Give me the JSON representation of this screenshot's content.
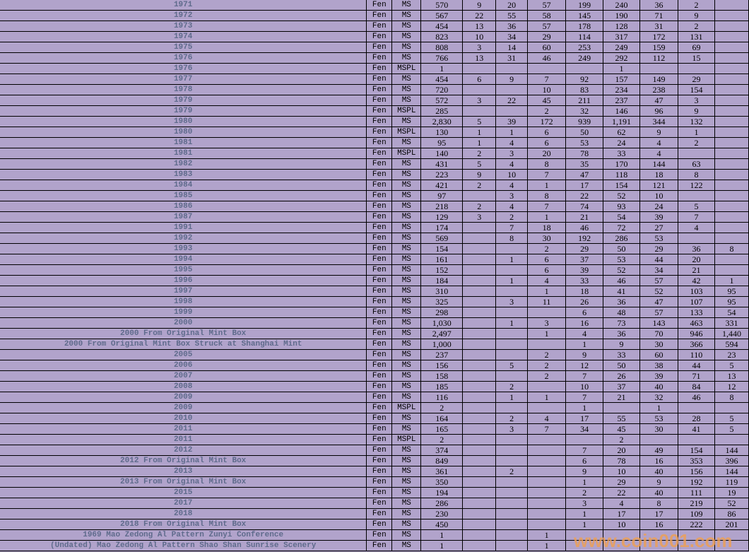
{
  "watermark": "www.coin001.com",
  "rows": [
    {
      "label": "1971",
      "denom": "Fen",
      "grade": "MS",
      "total": "570",
      "counts": [
        "9",
        "20",
        "57",
        "199",
        "240",
        "36",
        "2",
        ""
      ]
    },
    {
      "label": "1972",
      "denom": "Fen",
      "grade": "MS",
      "total": "567",
      "counts": [
        "22",
        "55",
        "58",
        "145",
        "190",
        "71",
        "9",
        ""
      ]
    },
    {
      "label": "1973",
      "denom": "Fen",
      "grade": "MS",
      "total": "454",
      "counts": [
        "13",
        "36",
        "57",
        "178",
        "128",
        "31",
        "2",
        ""
      ]
    },
    {
      "label": "1974",
      "denom": "Fen",
      "grade": "MS",
      "total": "823",
      "counts": [
        "10",
        "34",
        "29",
        "114",
        "317",
        "172",
        "131",
        ""
      ]
    },
    {
      "label": "1975",
      "denom": "Fen",
      "grade": "MS",
      "total": "808",
      "counts": [
        "3",
        "14",
        "60",
        "253",
        "249",
        "159",
        "69",
        ""
      ]
    },
    {
      "label": "1976",
      "denom": "Fen",
      "grade": "MS",
      "total": "766",
      "counts": [
        "13",
        "31",
        "46",
        "249",
        "292",
        "112",
        "15",
        ""
      ]
    },
    {
      "label": "1976",
      "denom": "Fen",
      "grade": "MSPL",
      "total": "1",
      "counts": [
        "",
        "",
        "",
        "",
        "1",
        "",
        "",
        ""
      ]
    },
    {
      "label": "1977",
      "denom": "Fen",
      "grade": "MS",
      "total": "454",
      "counts": [
        "6",
        "9",
        "7",
        "92",
        "157",
        "149",
        "29",
        ""
      ]
    },
    {
      "label": "1978",
      "denom": "Fen",
      "grade": "MS",
      "total": "720",
      "counts": [
        "",
        "",
        "10",
        "83",
        "234",
        "238",
        "154",
        ""
      ]
    },
    {
      "label": "1979",
      "denom": "Fen",
      "grade": "MS",
      "total": "572",
      "counts": [
        "3",
        "22",
        "45",
        "211",
        "237",
        "47",
        "3",
        ""
      ]
    },
    {
      "label": "1979",
      "denom": "Fen",
      "grade": "MSPL",
      "total": "285",
      "counts": [
        "",
        "",
        "2",
        "32",
        "146",
        "96",
        "9",
        ""
      ]
    },
    {
      "label": "1980",
      "denom": "Fen",
      "grade": "MS",
      "total": "2,830",
      "counts": [
        "5",
        "39",
        "172",
        "939",
        "1,191",
        "344",
        "132",
        ""
      ]
    },
    {
      "label": "1980",
      "denom": "Fen",
      "grade": "MSPL",
      "total": "130",
      "counts": [
        "1",
        "1",
        "6",
        "50",
        "62",
        "9",
        "1",
        ""
      ]
    },
    {
      "label": "1981",
      "denom": "Fen",
      "grade": "MS",
      "total": "95",
      "counts": [
        "1",
        "4",
        "6",
        "53",
        "24",
        "4",
        "2",
        ""
      ]
    },
    {
      "label": "1981",
      "denom": "Fen",
      "grade": "MSPL",
      "total": "140",
      "counts": [
        "2",
        "3",
        "20",
        "78",
        "33",
        "4",
        "",
        ""
      ]
    },
    {
      "label": "1982",
      "denom": "Fen",
      "grade": "MS",
      "total": "431",
      "counts": [
        "5",
        "4",
        "8",
        "35",
        "170",
        "144",
        "63",
        ""
      ]
    },
    {
      "label": "1983",
      "denom": "Fen",
      "grade": "MS",
      "total": "223",
      "counts": [
        "9",
        "10",
        "7",
        "47",
        "118",
        "18",
        "8",
        ""
      ]
    },
    {
      "label": "1984",
      "denom": "Fen",
      "grade": "MS",
      "total": "421",
      "counts": [
        "2",
        "4",
        "1",
        "17",
        "154",
        "121",
        "122",
        ""
      ]
    },
    {
      "label": "1985",
      "denom": "Fen",
      "grade": "MS",
      "total": "97",
      "counts": [
        "",
        "3",
        "8",
        "22",
        "52",
        "10",
        "",
        ""
      ]
    },
    {
      "label": "1986",
      "denom": "Fen",
      "grade": "MS",
      "total": "218",
      "counts": [
        "2",
        "4",
        "7",
        "74",
        "93",
        "24",
        "5",
        ""
      ]
    },
    {
      "label": "1987",
      "denom": "Fen",
      "grade": "MS",
      "total": "129",
      "counts": [
        "3",
        "2",
        "1",
        "21",
        "54",
        "39",
        "7",
        ""
      ]
    },
    {
      "label": "1991",
      "denom": "Fen",
      "grade": "MS",
      "total": "174",
      "counts": [
        "",
        "7",
        "18",
        "46",
        "72",
        "27",
        "4",
        ""
      ]
    },
    {
      "label": "1992",
      "denom": "Fen",
      "grade": "MS",
      "total": "569",
      "counts": [
        "",
        "8",
        "30",
        "192",
        "286",
        "53",
        "",
        ""
      ]
    },
    {
      "label": "1993",
      "denom": "Fen",
      "grade": "MS",
      "total": "154",
      "counts": [
        "",
        "",
        "2",
        "29",
        "50",
        "29",
        "36",
        "8"
      ]
    },
    {
      "label": "1994",
      "denom": "Fen",
      "grade": "MS",
      "total": "161",
      "counts": [
        "",
        "1",
        "6",
        "37",
        "53",
        "44",
        "20",
        ""
      ]
    },
    {
      "label": "1995",
      "denom": "Fen",
      "grade": "MS",
      "total": "152",
      "counts": [
        "",
        "",
        "6",
        "39",
        "52",
        "34",
        "21",
        ""
      ]
    },
    {
      "label": "1996",
      "denom": "Fen",
      "grade": "MS",
      "total": "184",
      "counts": [
        "",
        "1",
        "4",
        "33",
        "46",
        "57",
        "42",
        "1"
      ]
    },
    {
      "label": "1997",
      "denom": "Fen",
      "grade": "MS",
      "total": "310",
      "counts": [
        "",
        "",
        "1",
        "18",
        "41",
        "52",
        "103",
        "95"
      ]
    },
    {
      "label": "1998",
      "denom": "Fen",
      "grade": "MS",
      "total": "325",
      "counts": [
        "",
        "3",
        "11",
        "26",
        "36",
        "47",
        "107",
        "95"
      ]
    },
    {
      "label": "1999",
      "denom": "Fen",
      "grade": "MS",
      "total": "298",
      "counts": [
        "",
        "",
        "",
        "6",
        "48",
        "57",
        "133",
        "54"
      ]
    },
    {
      "label": "2000",
      "denom": "Fen",
      "grade": "MS",
      "total": "1,030",
      "counts": [
        "",
        "1",
        "3",
        "16",
        "73",
        "143",
        "463",
        "331"
      ]
    },
    {
      "label": "2000 From Original Mint Box",
      "denom": "Fen",
      "grade": "MS",
      "total": "2,497",
      "counts": [
        "",
        "",
        "1",
        "4",
        "36",
        "70",
        "946",
        "1,440"
      ]
    },
    {
      "label": "2000 From Original Mint Box Struck at Shanghai Mint",
      "denom": "Fen",
      "grade": "MS",
      "total": "1,000",
      "counts": [
        "",
        "",
        "",
        "1",
        "9",
        "30",
        "366",
        "594"
      ]
    },
    {
      "label": "2005",
      "denom": "Fen",
      "grade": "MS",
      "total": "237",
      "counts": [
        "",
        "",
        "2",
        "9",
        "33",
        "60",
        "110",
        "23"
      ]
    },
    {
      "label": "2006",
      "denom": "Fen",
      "grade": "MS",
      "total": "156",
      "counts": [
        "",
        "5",
        "2",
        "12",
        "50",
        "38",
        "44",
        "5"
      ]
    },
    {
      "label": "2007",
      "denom": "Fen",
      "grade": "MS",
      "total": "158",
      "counts": [
        "",
        "",
        "2",
        "7",
        "26",
        "39",
        "71",
        "13"
      ]
    },
    {
      "label": "2008",
      "denom": "Fen",
      "grade": "MS",
      "total": "185",
      "counts": [
        "",
        "2",
        "",
        "10",
        "37",
        "40",
        "84",
        "12"
      ]
    },
    {
      "label": "2009",
      "denom": "Fen",
      "grade": "MS",
      "total": "116",
      "counts": [
        "",
        "1",
        "1",
        "7",
        "21",
        "32",
        "46",
        "8"
      ]
    },
    {
      "label": "2009",
      "denom": "Fen",
      "grade": "MSPL",
      "total": "2",
      "counts": [
        "",
        "",
        "",
        "1",
        "",
        "1",
        "",
        ""
      ]
    },
    {
      "label": "2010",
      "denom": "Fen",
      "grade": "MS",
      "total": "164",
      "counts": [
        "",
        "2",
        "4",
        "17",
        "55",
        "53",
        "28",
        "5"
      ]
    },
    {
      "label": "2011",
      "denom": "Fen",
      "grade": "MS",
      "total": "165",
      "counts": [
        "",
        "3",
        "7",
        "34",
        "45",
        "30",
        "41",
        "5"
      ]
    },
    {
      "label": "2011",
      "denom": "Fen",
      "grade": "MSPL",
      "total": "2",
      "counts": [
        "",
        "",
        "",
        "",
        "2",
        "",
        "",
        ""
      ]
    },
    {
      "label": "2012",
      "denom": "Fen",
      "grade": "MS",
      "total": "374",
      "counts": [
        "",
        "",
        "",
        "7",
        "20",
        "49",
        "154",
        "144"
      ]
    },
    {
      "label": "2012 From Original Mint Box",
      "denom": "Fen",
      "grade": "MS",
      "total": "849",
      "counts": [
        "",
        "",
        "",
        "6",
        "78",
        "16",
        "353",
        "396"
      ]
    },
    {
      "label": "2013",
      "denom": "Fen",
      "grade": "MS",
      "total": "361",
      "counts": [
        "",
        "2",
        "",
        "9",
        "10",
        "40",
        "156",
        "144"
      ]
    },
    {
      "label": "2013 From Original Mint Box",
      "denom": "Fen",
      "grade": "MS",
      "total": "350",
      "counts": [
        "",
        "",
        "",
        "1",
        "29",
        "9",
        "192",
        "119"
      ]
    },
    {
      "label": "2015",
      "denom": "Fen",
      "grade": "MS",
      "total": "194",
      "counts": [
        "",
        "",
        "",
        "2",
        "22",
        "40",
        "111",
        "19"
      ]
    },
    {
      "label": "2017",
      "denom": "Fen",
      "grade": "MS",
      "total": "286",
      "counts": [
        "",
        "",
        "",
        "3",
        "4",
        "8",
        "219",
        "52"
      ]
    },
    {
      "label": "2018",
      "denom": "Fen",
      "grade": "MS",
      "total": "230",
      "counts": [
        "",
        "",
        "",
        "1",
        "17",
        "17",
        "109",
        "86"
      ]
    },
    {
      "label": "2018 From Original Mint Box",
      "denom": "Fen",
      "grade": "MS",
      "total": "450",
      "counts": [
        "",
        "",
        "",
        "1",
        "10",
        "16",
        "222",
        "201"
      ]
    },
    {
      "label": "1969 Mao Zedong Al Pattern Zunyi Conference",
      "denom": "Fen",
      "grade": "MS",
      "total": "1",
      "counts": [
        "",
        "",
        "1",
        "",
        "",
        "",
        "",
        ""
      ]
    },
    {
      "label": "(Undated) Mao Zedong Al Pattern Shao Shan Sunrise Scenery",
      "denom": "Fen",
      "grade": "MS",
      "total": "1",
      "counts": [
        "",
        "",
        "1",
        "",
        "",
        "",
        "",
        ""
      ]
    }
  ]
}
